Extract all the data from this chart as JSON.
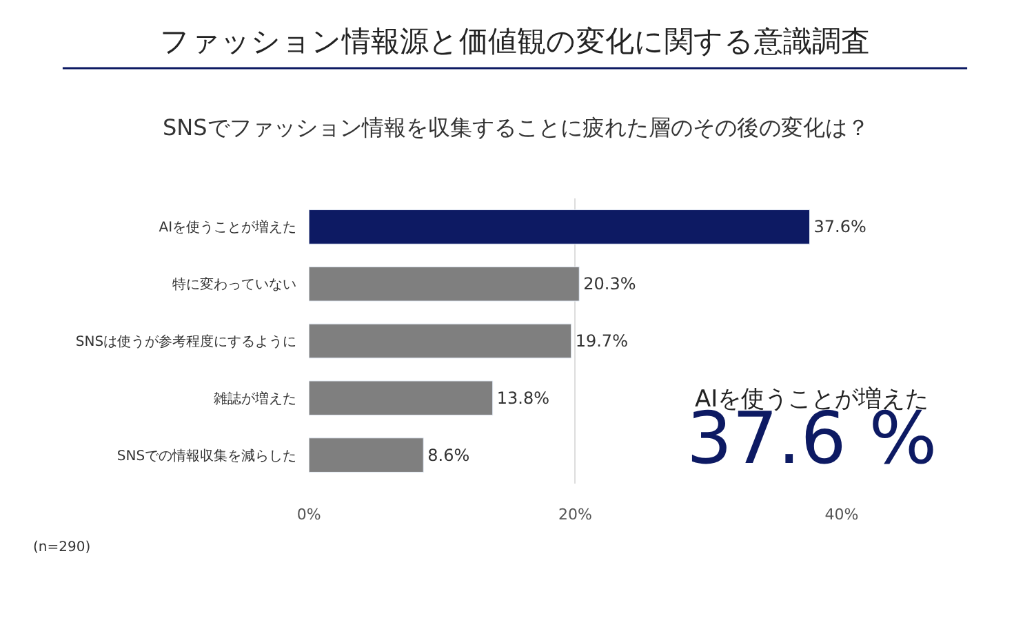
{
  "chart_data": {
    "type": "bar",
    "orientation": "horizontal",
    "title": "ファッション情報源と価値観の変化に関する意識調査",
    "subtitle": "SNSでファッション情報を収集することに疲れた層のその後の変化は？",
    "categories": [
      "AIを使うことが増えた",
      "特に変わっていない",
      "SNSは使うが参考程度にするように",
      "雑誌が増えた",
      "SNSでの情報収集を減らした"
    ],
    "values": [
      37.6,
      20.3,
      19.7,
      13.8,
      8.6
    ],
    "colors": [
      "#0d1a63",
      "#7f7f7f",
      "#7f7f7f",
      "#7f7f7f",
      "#7f7f7f"
    ],
    "value_labels": [
      "37.6%",
      "20.3%",
      "19.7%",
      "13.8%",
      "8.6%"
    ],
    "xlim": [
      0,
      40
    ],
    "xticks": [
      {
        "value": 0,
        "label": "0%"
      },
      {
        "value": 20,
        "label": "20%"
      },
      {
        "value": 40,
        "label": "40%"
      }
    ],
    "grid": "x",
    "legend": false,
    "annotations": [
      "AIを使うことが増えた",
      "37.6 %",
      "(n=290)"
    ]
  }
}
